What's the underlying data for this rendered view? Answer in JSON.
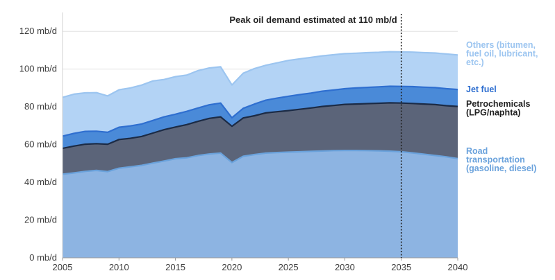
{
  "chart_data": {
    "type": "area",
    "stacked": true,
    "title": "",
    "xlabel": "",
    "ylabel": "",
    "xlim": [
      2005,
      2040
    ],
    "ylim": [
      0,
      130
    ],
    "y_unit": "mb/d",
    "grid": "horizontal",
    "legend_placement": "right",
    "x_ticks": [
      "2005",
      "2010",
      "2015",
      "2020",
      "2025",
      "2030",
      "2035",
      "2040"
    ],
    "y_ticks": [
      "0 mb/d",
      "20 mb/d",
      "40 mb/d",
      "60 mb/d",
      "80 mb/d",
      "100 mb/d",
      "120 mb/d"
    ],
    "x": [
      2005,
      2006,
      2007,
      2008,
      2009,
      2010,
      2011,
      2012,
      2013,
      2014,
      2015,
      2016,
      2017,
      2018,
      2019,
      2020,
      2021,
      2022,
      2023,
      2024,
      2025,
      2026,
      2027,
      2028,
      2029,
      2030,
      2031,
      2032,
      2033,
      2034,
      2035,
      2036,
      2037,
      2038,
      2039,
      2040
    ],
    "series": [
      {
        "name": "Road transportation (gasoline, diesel)",
        "color": "#8db4e2",
        "line_color": "#6aa2dc",
        "values": [
          44.3,
          45,
          45.8,
          46.3,
          45.7,
          47.5,
          48.2,
          49,
          50.2,
          51.3,
          52.5,
          53,
          54.2,
          55,
          55.5,
          50.5,
          53.8,
          54.7,
          55.5,
          55.8,
          56,
          56.2,
          56.4,
          56.6,
          56.8,
          56.9,
          56.9,
          56.8,
          56.7,
          56.5,
          56.2,
          55.6,
          54.9,
          54.2,
          53.5,
          52.6
        ]
      },
      {
        "name": "Petrochemicals (LPG/naphta)",
        "color": "#5b6479",
        "line_color": "#1c2b45",
        "values": [
          13.7,
          14.2,
          14.4,
          14.2,
          14.5,
          15.2,
          15.1,
          15.3,
          15.9,
          16.6,
          16.8,
          17.6,
          18.1,
          18.9,
          19.2,
          19.2,
          20.3,
          20.6,
          21.3,
          21.6,
          22,
          22.5,
          23,
          23.6,
          23.9,
          24.4,
          24.6,
          24.9,
          25.2,
          25.6,
          25.8,
          26.2,
          26.6,
          27,
          27.1,
          27.6
        ]
      },
      {
        "name": "Jet fuel",
        "color": "#4a8ad8",
        "line_color": "#2f6fd0",
        "values": [
          6.5,
          6.7,
          6.8,
          6.6,
          6.3,
          6.5,
          6.6,
          6.6,
          6.7,
          6.8,
          6.8,
          7,
          7.1,
          7.2,
          7.3,
          4.5,
          5.1,
          6.2,
          6.7,
          7.2,
          7.6,
          7.8,
          7.9,
          8.1,
          8.2,
          8.3,
          8.5,
          8.6,
          8.7,
          8.8,
          8.8,
          8.9,
          8.9,
          9,
          9,
          9
        ]
      },
      {
        "name": "Others (bitumen, fuel oil, lubricant, etc.)",
        "color": "#b3d3f5",
        "line_color": "#9cc5f0",
        "values": [
          20.5,
          20.8,
          20.4,
          20.4,
          19.3,
          19.8,
          20.1,
          20.6,
          20.9,
          19.8,
          19.9,
          19.2,
          19.8,
          19.5,
          19.2,
          17.4,
          18.6,
          18.8,
          18.5,
          18.7,
          19,
          18.9,
          18.9,
          18.7,
          18.7,
          18.6,
          18.4,
          18.4,
          18.3,
          18.3,
          18.3,
          18.3,
          18.3,
          18.3,
          18.4,
          18.3
        ]
      }
    ],
    "reference_line": {
      "x": 2035,
      "label": "Peak oil demand estimated at 110 mb/d"
    }
  },
  "legend": {
    "others": {
      "lines": [
        "Others (bitumen,",
        "fuel oil, lubricant,",
        "etc.)"
      ],
      "color": "#9cc5f0"
    },
    "jet": {
      "lines": [
        "Jet fuel"
      ],
      "color": "#2f6fd0"
    },
    "petro": {
      "lines": [
        "Petrochemicals",
        "(LPG/naphta)"
      ],
      "color": "#222222"
    },
    "road": {
      "lines": [
        "Road",
        "transportation",
        "(gasoline, diesel)"
      ],
      "color": "#6aa2dc"
    }
  }
}
